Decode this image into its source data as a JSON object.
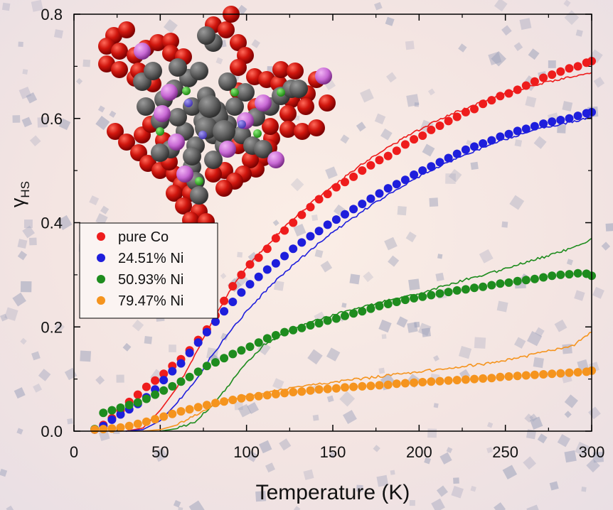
{
  "chart_data": {
    "type": "scatter",
    "title": "",
    "xlabel": "Temperature (K)",
    "ylabel_main": "γ",
    "ylabel_sub": "HS",
    "xlim": [
      0,
      300
    ],
    "ylim": [
      0,
      0.8
    ],
    "x_ticks": [
      0,
      50,
      100,
      150,
      200,
      250,
      300
    ],
    "y_ticks": [
      0.0,
      0.2,
      0.4,
      0.6,
      0.8
    ],
    "x_tick_labels": [
      "0",
      "50",
      "100",
      "150",
      "200",
      "250",
      "300"
    ],
    "y_tick_labels": [
      "0.0",
      "0.2",
      "0.4",
      "0.6",
      "0.8"
    ],
    "legend_position": "middle-left",
    "series": [
      {
        "name": "pure Co",
        "color": "#ee1c1c",
        "points_x": [
          12,
          17,
          22,
          27,
          32,
          37,
          42,
          47,
          52,
          57,
          62,
          67,
          72,
          77,
          82,
          87,
          92,
          97,
          102,
          107,
          112,
          117,
          122,
          127,
          132,
          137,
          142,
          147,
          152,
          157,
          162,
          167,
          172,
          177,
          182,
          187,
          192,
          197,
          202,
          207,
          212,
          217,
          222,
          227,
          232,
          237,
          242,
          247,
          252,
          257,
          262,
          267,
          272,
          277,
          282,
          287,
          292,
          297,
          300
        ],
        "points_y": [
          0.003,
          0.012,
          0.025,
          0.04,
          0.056,
          0.07,
          0.085,
          0.097,
          0.11,
          0.125,
          0.138,
          0.155,
          0.175,
          0.195,
          0.222,
          0.25,
          0.278,
          0.3,
          0.32,
          0.333,
          0.35,
          0.37,
          0.385,
          0.4,
          0.415,
          0.43,
          0.445,
          0.455,
          0.468,
          0.478,
          0.488,
          0.5,
          0.51,
          0.52,
          0.528,
          0.538,
          0.55,
          0.56,
          0.567,
          0.578,
          0.586,
          0.595,
          0.603,
          0.612,
          0.618,
          0.628,
          0.635,
          0.643,
          0.648,
          0.655,
          0.663,
          0.671,
          0.678,
          0.684,
          0.69,
          0.696,
          0.7,
          0.707,
          0.71
        ],
        "line_x": [
          30,
          40,
          50,
          60,
          70,
          80,
          90,
          100,
          110,
          120,
          130,
          140,
          150,
          160,
          170,
          180,
          190,
          200,
          210,
          220,
          230,
          240,
          250,
          260,
          270,
          280,
          290,
          300
        ],
        "line_y": [
          0.0,
          0.006,
          0.04,
          0.085,
          0.145,
          0.21,
          0.268,
          0.313,
          0.35,
          0.385,
          0.415,
          0.445,
          0.47,
          0.495,
          0.52,
          0.54,
          0.56,
          0.578,
          0.595,
          0.61,
          0.623,
          0.637,
          0.648,
          0.658,
          0.667,
          0.674,
          0.681,
          0.688
        ]
      },
      {
        "name": "24.51% Ni",
        "color": "#1e1edc",
        "points_x": [
          12,
          17,
          22,
          27,
          32,
          37,
          42,
          47,
          52,
          57,
          62,
          67,
          72,
          77,
          82,
          87,
          92,
          97,
          102,
          107,
          112,
          117,
          122,
          127,
          132,
          137,
          142,
          147,
          152,
          157,
          162,
          167,
          172,
          177,
          182,
          187,
          192,
          197,
          202,
          207,
          212,
          217,
          222,
          227,
          232,
          237,
          242,
          247,
          252,
          257,
          262,
          267,
          272,
          277,
          282,
          287,
          292,
          297,
          300
        ],
        "points_y": [
          0.003,
          0.01,
          0.022,
          0.032,
          0.042,
          0.052,
          0.065,
          0.08,
          0.098,
          0.115,
          0.13,
          0.15,
          0.17,
          0.19,
          0.21,
          0.23,
          0.248,
          0.266,
          0.282,
          0.296,
          0.31,
          0.322,
          0.336,
          0.35,
          0.362,
          0.374,
          0.384,
          0.396,
          0.406,
          0.416,
          0.426,
          0.436,
          0.446,
          0.456,
          0.466,
          0.474,
          0.482,
          0.492,
          0.5,
          0.508,
          0.516,
          0.524,
          0.532,
          0.54,
          0.546,
          0.552,
          0.558,
          0.565,
          0.57,
          0.576,
          0.58,
          0.585,
          0.59,
          0.594,
          0.597,
          0.6,
          0.605,
          0.61,
          0.612
        ],
        "line_x": [
          30,
          40,
          50,
          60,
          70,
          80,
          90,
          100,
          110,
          120,
          130,
          140,
          150,
          160,
          170,
          180,
          190,
          200,
          210,
          220,
          230,
          240,
          250,
          260,
          270,
          280,
          290,
          300
        ],
        "line_y": [
          0.0,
          0.003,
          0.02,
          0.055,
          0.095,
          0.145,
          0.19,
          0.23,
          0.265,
          0.298,
          0.328,
          0.355,
          0.382,
          0.405,
          0.428,
          0.45,
          0.47,
          0.488,
          0.505,
          0.52,
          0.535,
          0.548,
          0.56,
          0.57,
          0.58,
          0.588,
          0.595,
          0.602
        ]
      },
      {
        "name": "50.93% Ni",
        "color": "#1e8c1e",
        "points_x": [
          12,
          17,
          22,
          27,
          32,
          37,
          42,
          47,
          52,
          57,
          62,
          67,
          72,
          77,
          82,
          87,
          92,
          97,
          102,
          107,
          112,
          117,
          122,
          127,
          132,
          137,
          142,
          147,
          152,
          157,
          162,
          167,
          172,
          177,
          182,
          187,
          192,
          197,
          202,
          207,
          212,
          217,
          222,
          227,
          232,
          237,
          242,
          247,
          252,
          257,
          262,
          267,
          272,
          277,
          282,
          287,
          292,
          297,
          300
        ],
        "points_y": [
          0.004,
          0.035,
          0.04,
          0.045,
          0.05,
          0.055,
          0.062,
          0.07,
          0.078,
          0.086,
          0.095,
          0.104,
          0.114,
          0.125,
          0.132,
          0.14,
          0.148,
          0.155,
          0.162,
          0.17,
          0.178,
          0.184,
          0.19,
          0.194,
          0.198,
          0.203,
          0.207,
          0.212,
          0.216,
          0.221,
          0.226,
          0.23,
          0.235,
          0.24,
          0.244,
          0.248,
          0.252,
          0.255,
          0.258,
          0.261,
          0.264,
          0.267,
          0.27,
          0.272,
          0.275,
          0.277,
          0.28,
          0.283,
          0.285,
          0.288,
          0.29,
          0.292,
          0.295,
          0.298,
          0.3,
          0.301,
          0.303,
          0.302,
          0.298
        ],
        "line_x": [
          50,
          60,
          70,
          80,
          90,
          100,
          110,
          120,
          130,
          140,
          150,
          160,
          170,
          180,
          190,
          200,
          210,
          220,
          230,
          240,
          250,
          260,
          270,
          280,
          290,
          300
        ],
        "line_y": [
          0.0,
          0.005,
          0.018,
          0.048,
          0.09,
          0.13,
          0.165,
          0.185,
          0.2,
          0.212,
          0.222,
          0.232,
          0.24,
          0.25,
          0.256,
          0.264,
          0.274,
          0.284,
          0.294,
          0.302,
          0.312,
          0.322,
          0.332,
          0.342,
          0.352,
          0.37
        ]
      },
      {
        "name": "79.47% Ni",
        "color": "#f5941e",
        "points_x": [
          12,
          17,
          22,
          27,
          32,
          37,
          42,
          47,
          52,
          57,
          62,
          67,
          72,
          77,
          82,
          87,
          92,
          97,
          102,
          107,
          112,
          117,
          122,
          127,
          132,
          137,
          142,
          147,
          152,
          157,
          162,
          167,
          172,
          177,
          182,
          187,
          192,
          197,
          202,
          207,
          212,
          217,
          222,
          227,
          232,
          237,
          242,
          247,
          252,
          257,
          262,
          267,
          272,
          277,
          282,
          287,
          292,
          297,
          300
        ],
        "points_y": [
          0.003,
          0.004,
          0.005,
          0.007,
          0.01,
          0.014,
          0.018,
          0.023,
          0.028,
          0.033,
          0.038,
          0.042,
          0.046,
          0.05,
          0.054,
          0.057,
          0.06,
          0.063,
          0.065,
          0.067,
          0.069,
          0.071,
          0.073,
          0.075,
          0.076,
          0.078,
          0.08,
          0.081,
          0.082,
          0.084,
          0.085,
          0.086,
          0.087,
          0.088,
          0.089,
          0.091,
          0.092,
          0.093,
          0.094,
          0.095,
          0.096,
          0.097,
          0.098,
          0.099,
          0.1,
          0.101,
          0.102,
          0.104,
          0.105,
          0.106,
          0.107,
          0.108,
          0.109,
          0.11,
          0.111,
          0.112,
          0.113,
          0.114,
          0.116
        ],
        "line_x": [
          40,
          50,
          60,
          70,
          80,
          90,
          100,
          110,
          120,
          130,
          140,
          150,
          160,
          170,
          180,
          190,
          200,
          210,
          220,
          230,
          240,
          250,
          260,
          270,
          280,
          290,
          300
        ],
        "line_y": [
          0.0,
          0.003,
          0.012,
          0.03,
          0.048,
          0.06,
          0.068,
          0.074,
          0.08,
          0.085,
          0.089,
          0.094,
          0.098,
          0.102,
          0.106,
          0.11,
          0.114,
          0.118,
          0.122,
          0.126,
          0.13,
          0.136,
          0.142,
          0.15,
          0.158,
          0.166,
          0.19
        ]
      }
    ]
  }
}
